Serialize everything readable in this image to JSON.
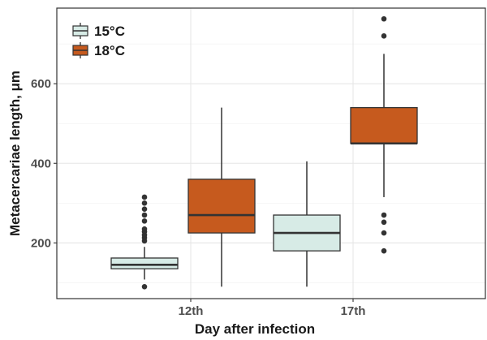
{
  "chart_data": {
    "type": "boxplot",
    "xlabel": "Day after infection",
    "ylabel": "Metacercariae length, μm",
    "categories": [
      "12th",
      "17th"
    ],
    "ylim": [
      60,
      790
    ],
    "yticks": [
      200,
      400,
      600
    ],
    "grid": true,
    "legend_position": "top-left",
    "series": [
      {
        "name": "15°C",
        "color": "#d7ebe6",
        "boxes": [
          {
            "category": "12th",
            "whisker_low": 108,
            "q1": 135,
            "median": 145,
            "q3": 162,
            "whisker_high": 190,
            "outliers": [
              90,
              205,
              213,
              220,
              228,
              235,
              255,
              270,
              285,
              300,
              315
            ]
          },
          {
            "category": "17th",
            "whisker_low": 90,
            "q1": 180,
            "median": 225,
            "q3": 270,
            "whisker_high": 405,
            "outliers": []
          }
        ]
      },
      {
        "name": "18°C",
        "color": "#c65a1e",
        "boxes": [
          {
            "category": "12th",
            "whisker_low": 90,
            "q1": 225,
            "median": 270,
            "q3": 360,
            "whisker_high": 540,
            "outliers": []
          },
          {
            "category": "17th",
            "whisker_low": 315,
            "q1": 450,
            "median": 450,
            "q3": 540,
            "whisker_high": 675,
            "outliers": [
              180,
              225,
              252,
              270,
              720,
              763
            ]
          }
        ]
      }
    ]
  }
}
